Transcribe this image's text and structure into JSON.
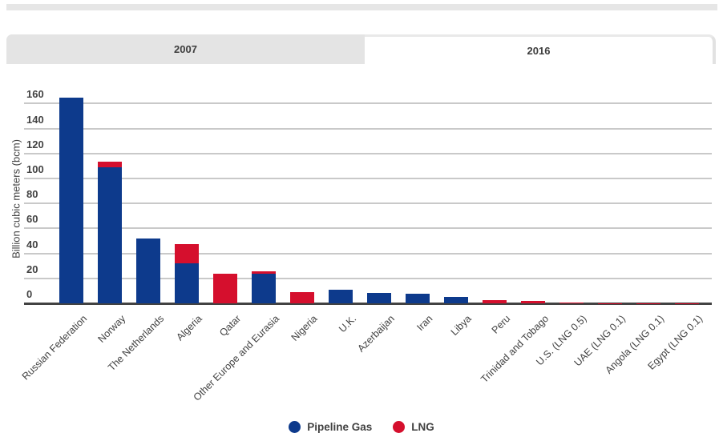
{
  "tabs": [
    {
      "label": "2007",
      "active": false
    },
    {
      "label": "2016",
      "active": true
    }
  ],
  "chart_data": {
    "type": "bar",
    "stacked": true,
    "title": "",
    "xlabel": "",
    "ylabel": "Billion cubic meters (bcm)",
    "ylim": [
      0,
      160
    ],
    "ytick_step": 20,
    "yticks": [
      0,
      20,
      40,
      60,
      80,
      100,
      120,
      140,
      160
    ],
    "grid": true,
    "legend_position": "bottom",
    "categories": [
      "Russian Federation",
      "Norway",
      "The Netherlands",
      "Algeria",
      "Qatar",
      "Other Europe and Eurasia",
      "Nigeria",
      "U.K.",
      "Azerbaijan",
      "Iran",
      "Libya",
      "Peru",
      "Trinidad and Tobago",
      "U.S. (LNG 0.5)",
      "UAE (LNG 0.1)",
      "Angola (LNG 0.1)",
      "Egypt (LNG 0.1)"
    ],
    "series": [
      {
        "name": "Pipeline Gas",
        "color": "#0d3a8c",
        "values": [
          165,
          109,
          52,
          32,
          0,
          23.5,
          0,
          11,
          8.5,
          7.5,
          5,
          0,
          0,
          0,
          0,
          0,
          0
        ]
      },
      {
        "name": "LNG",
        "color": "#d50f2d",
        "values": [
          0,
          4.5,
          0,
          15.5,
          23.5,
          2,
          9,
          0,
          0,
          0,
          0,
          2.5,
          2,
          0.5,
          0.1,
          0.1,
          0.1
        ]
      }
    ]
  }
}
